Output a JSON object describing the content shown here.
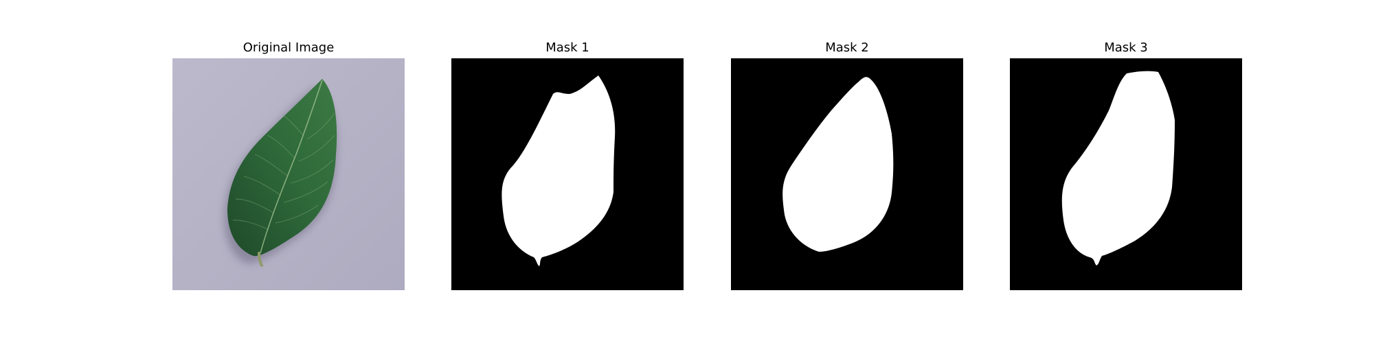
{
  "figure": {
    "panels": [
      {
        "title": "Original Image",
        "kind": "photo",
        "description_icon": "leaf-photo"
      },
      {
        "title": "Mask 1",
        "kind": "mask"
      },
      {
        "title": "Mask 2",
        "kind": "mask"
      },
      {
        "title": "Mask 3",
        "kind": "mask"
      }
    ],
    "colors": {
      "background_photo": "#b9b6c8",
      "leaf_dark": "#1f4a2a",
      "leaf_mid": "#2f6a3a",
      "leaf_light": "#4f8a55",
      "vein": "#9fbf8f",
      "mask_bg": "#000000",
      "mask_fg": "#ffffff"
    }
  }
}
